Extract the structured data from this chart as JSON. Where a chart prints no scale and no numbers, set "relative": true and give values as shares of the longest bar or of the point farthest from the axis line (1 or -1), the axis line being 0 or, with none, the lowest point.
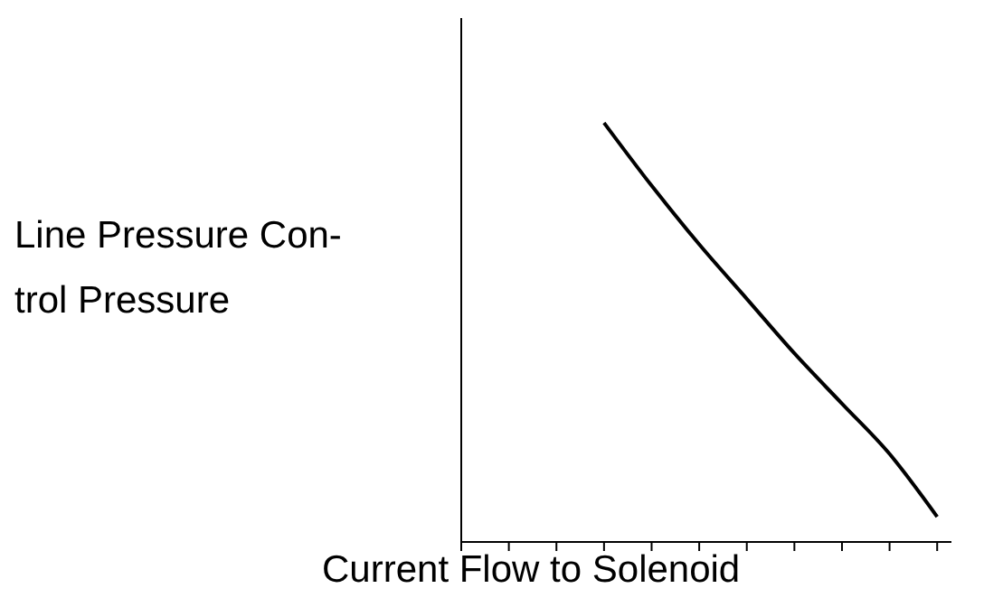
{
  "chart_data": {
    "type": "line",
    "relative": true,
    "xlabel": "Current Flow to Solenoid",
    "ylabel": "Line Pressure Con-\ntrol Pressure",
    "categories": [
      null,
      null,
      null,
      null,
      null,
      null,
      null,
      null,
      null,
      null,
      null
    ],
    "series": [
      {
        "color": "#000000",
        "values": [
          null,
          null,
          null,
          1,
          0.85,
          0.71,
          0.58,
          0.45,
          0.33,
          0.21,
          0.06
        ]
      }
    ],
    "marker": "none",
    "line_style": "solid"
  }
}
